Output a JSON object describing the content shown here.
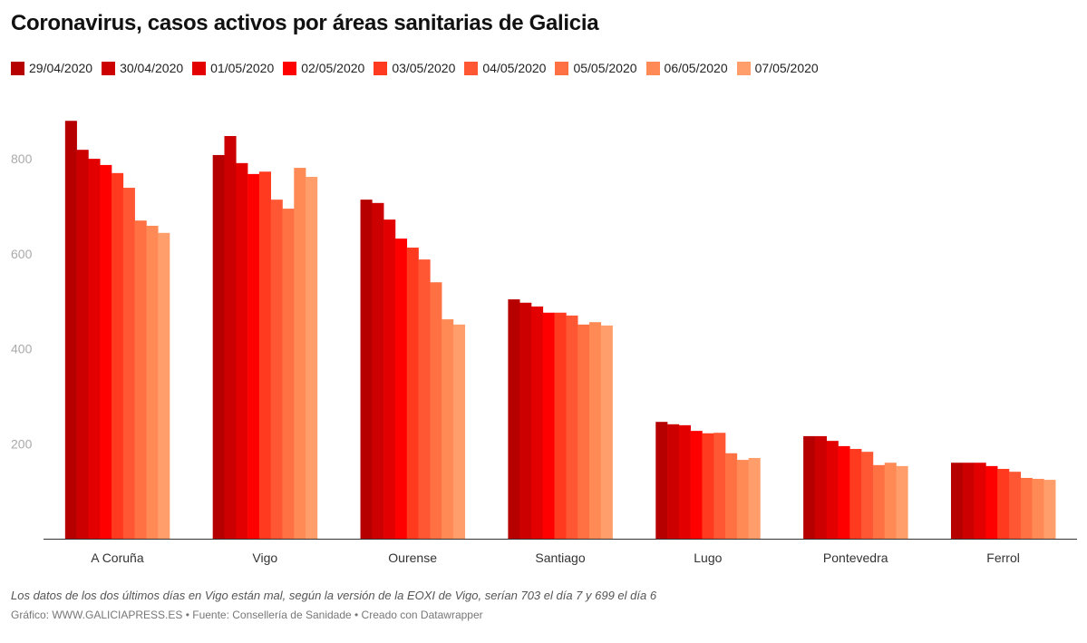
{
  "chart_data": {
    "type": "bar",
    "title": "Coronavirus, casos activos por áreas sanitarias de Galicia",
    "categories": [
      "A Coruña",
      "Vigo",
      "Ourense",
      "Santiago",
      "Lugo",
      "Pontevedra",
      "Ferrol"
    ],
    "series": [
      {
        "name": "29/04/2020",
        "color": "#b60000",
        "values": [
          880,
          808,
          714,
          504,
          246,
          216,
          160
        ]
      },
      {
        "name": "30/04/2020",
        "color": "#cc0000",
        "values": [
          819,
          848,
          707,
          497,
          241,
          216,
          160
        ]
      },
      {
        "name": "01/05/2020",
        "color": "#e30000",
        "values": [
          800,
          791,
          672,
          489,
          239,
          206,
          160
        ]
      },
      {
        "name": "02/05/2020",
        "color": "#ff0000",
        "values": [
          787,
          768,
          632,
          476,
          227,
          195,
          153
        ]
      },
      {
        "name": "03/05/2020",
        "color": "#ff3a1f",
        "values": [
          770,
          773,
          613,
          476,
          222,
          189,
          147
        ]
      },
      {
        "name": "04/05/2020",
        "color": "#ff5733",
        "values": [
          739,
          714,
          588,
          470,
          223,
          183,
          141
        ]
      },
      {
        "name": "05/05/2020",
        "color": "#ff7043",
        "values": [
          670,
          695,
          540,
          451,
          180,
          155,
          128
        ]
      },
      {
        "name": "06/05/2020",
        "color": "#ff8a55",
        "values": [
          659,
          781,
          462,
          456,
          166,
          160,
          126
        ]
      },
      {
        "name": "07/05/2020",
        "color": "#ff9e6a",
        "values": [
          644,
          762,
          451,
          449,
          170,
          153,
          124
        ]
      }
    ],
    "yticks": [
      200,
      400,
      600,
      800
    ],
    "ylim": [
      0,
      920
    ],
    "grid": false,
    "legend": "top-left",
    "note": "Los datos de los dos últimos días en Vigo están mal, según la versión de la EOXI de Vigo, serían 703 el día 7 y 699 el día 6",
    "credit": "Gráfico: WWW.GALICIAPRESS.ES • Fuente: Consellería de Sanidade • Creado con Datawrapper"
  }
}
